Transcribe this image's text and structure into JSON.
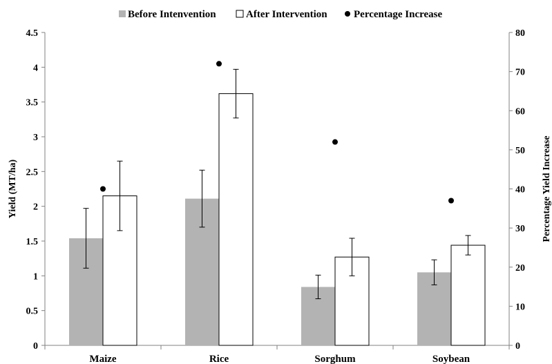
{
  "chart_data": {
    "type": "bar",
    "categories": [
      "Maize",
      "Rice",
      "Sorghum",
      "Soybean"
    ],
    "series": [
      {
        "name": "Before Intenvention",
        "values": [
          1.54,
          2.11,
          0.84,
          1.05
        ],
        "error": [
          0.43,
          0.41,
          0.17,
          0.18
        ],
        "color": "#b3b3b3",
        "axis": "left"
      },
      {
        "name": "After Intervention",
        "values": [
          2.15,
          3.62,
          1.27,
          1.44
        ],
        "error": [
          0.5,
          0.35,
          0.27,
          0.14
        ],
        "color": "#ffffff",
        "axis": "left"
      },
      {
        "name": "Percentage Increase",
        "values": [
          40,
          72,
          52,
          37
        ],
        "color": "#000000",
        "axis": "right",
        "marker": "point"
      }
    ],
    "title": "",
    "xlabel": "",
    "ylabel": "Yield (MT/ha)",
    "y2label": "Percentage Yield Increase",
    "ylim": [
      0,
      4.5
    ],
    "y2lim": [
      0,
      80
    ],
    "yticks": [
      "0",
      "0.5",
      "1",
      "1.5",
      "2",
      "2.5",
      "3",
      "3.5",
      "4",
      "4.5"
    ],
    "y2ticks": [
      "0",
      "10",
      "20",
      "30",
      "40",
      "50",
      "60",
      "70",
      "80"
    ],
    "grid": false,
    "legend": "top-center"
  }
}
